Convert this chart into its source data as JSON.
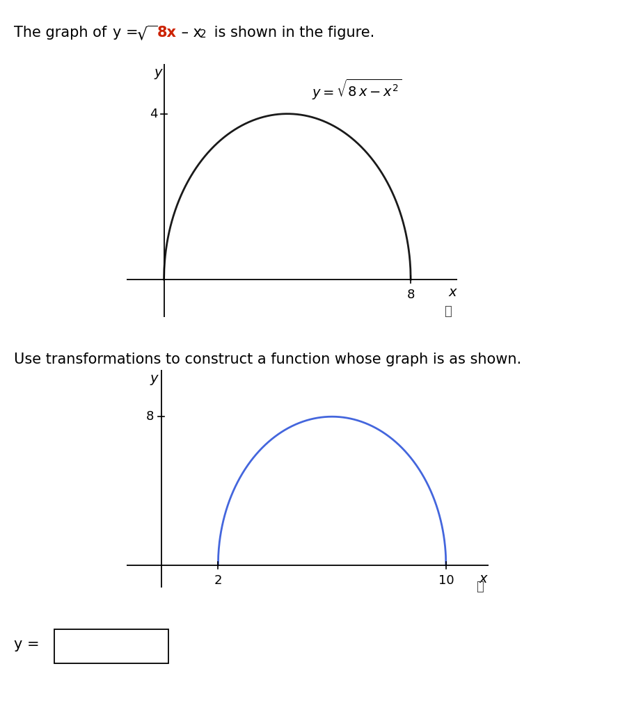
{
  "instruction": "Use transformations to construct a function whose graph is as shown.",
  "graph1": {
    "x_start": 0,
    "x_end": 8,
    "curve_color": "#1a1a1a",
    "linewidth": 2.0,
    "ytick_val": 4,
    "xtick_val": 8,
    "xlim": [
      -1.2,
      9.5
    ],
    "ylim": [
      -0.9,
      5.2
    ],
    "label_x": "x",
    "label_y": "y"
  },
  "graph2": {
    "x_start": 2,
    "x_end": 10,
    "curve_color": "#4466dd",
    "linewidth": 2.0,
    "ytick_val": 8,
    "xtick_val_left": 2,
    "xtick_val_right": 10,
    "xlim": [
      -1.2,
      11.5
    ],
    "ylim": [
      -1.2,
      10.5
    ],
    "label_x": "x",
    "label_y": "y"
  },
  "background_color": "#ffffff",
  "text_color": "#000000",
  "red_color": "#cc2200",
  "font_size_main": 15,
  "font_size_tick": 13,
  "font_size_eq": 13
}
